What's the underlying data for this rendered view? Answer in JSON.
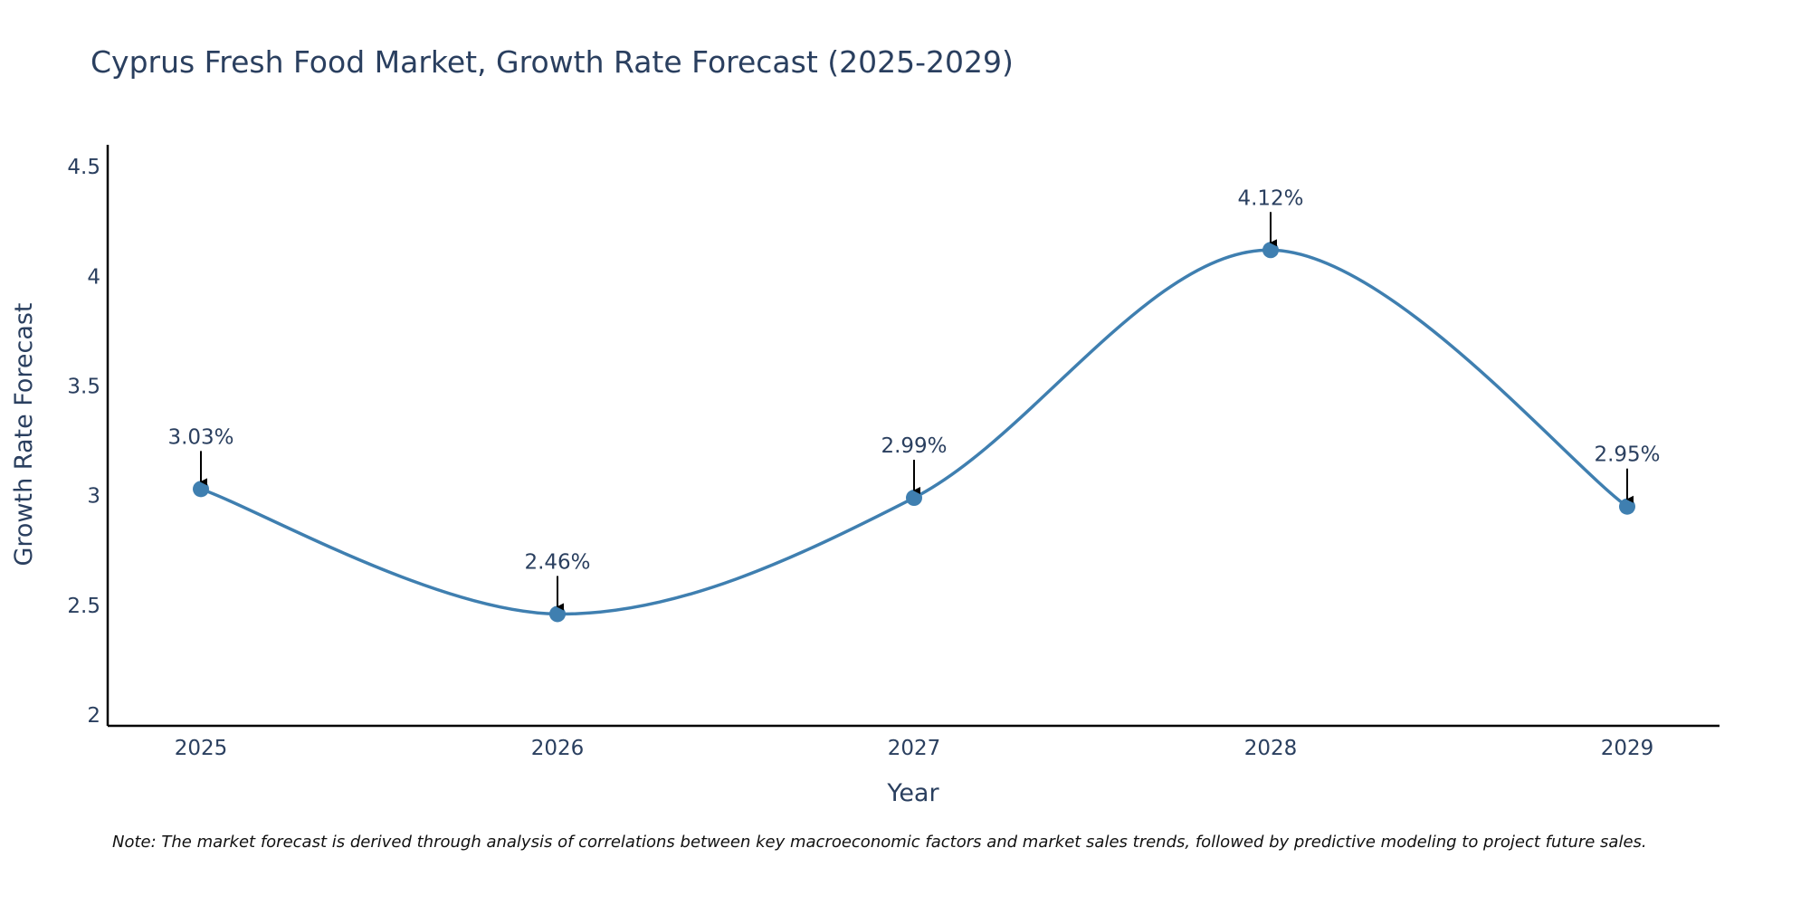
{
  "colors": {
    "line": "#3f7fb0",
    "marker": "#3f7fb0",
    "axis": "#000000",
    "arrow": "#000000",
    "text": "#2a3f5f"
  },
  "chart_data": {
    "type": "line",
    "title": "Cyprus Fresh Food Market, Growth Rate Forecast (2025-2029)",
    "xlabel": "Year",
    "ylabel": "Growth Rate Forecast",
    "categories": [
      "2025",
      "2026",
      "2027",
      "2028",
      "2029"
    ],
    "series": [
      {
        "name": "Growth Rate Forecast",
        "values": [
          3.03,
          2.46,
          2.99,
          4.12,
          2.95
        ]
      }
    ],
    "data_labels": [
      "3.03%",
      "2.46%",
      "2.99%",
      "4.12%",
      "2.95%"
    ],
    "ylim": [
      1.95,
      4.6
    ],
    "yticks": [
      2,
      2.5,
      3,
      3.5,
      4,
      4.5
    ],
    "ytick_labels": [
      "2",
      "2.5",
      "3",
      "3.5",
      "4",
      "4.5"
    ],
    "line_shape": "spline",
    "grid": false
  },
  "footnote": "Note: The market forecast is derived through analysis of correlations between key macroeconomic factors and market sales trends, followed by predictive modeling to project future sales."
}
